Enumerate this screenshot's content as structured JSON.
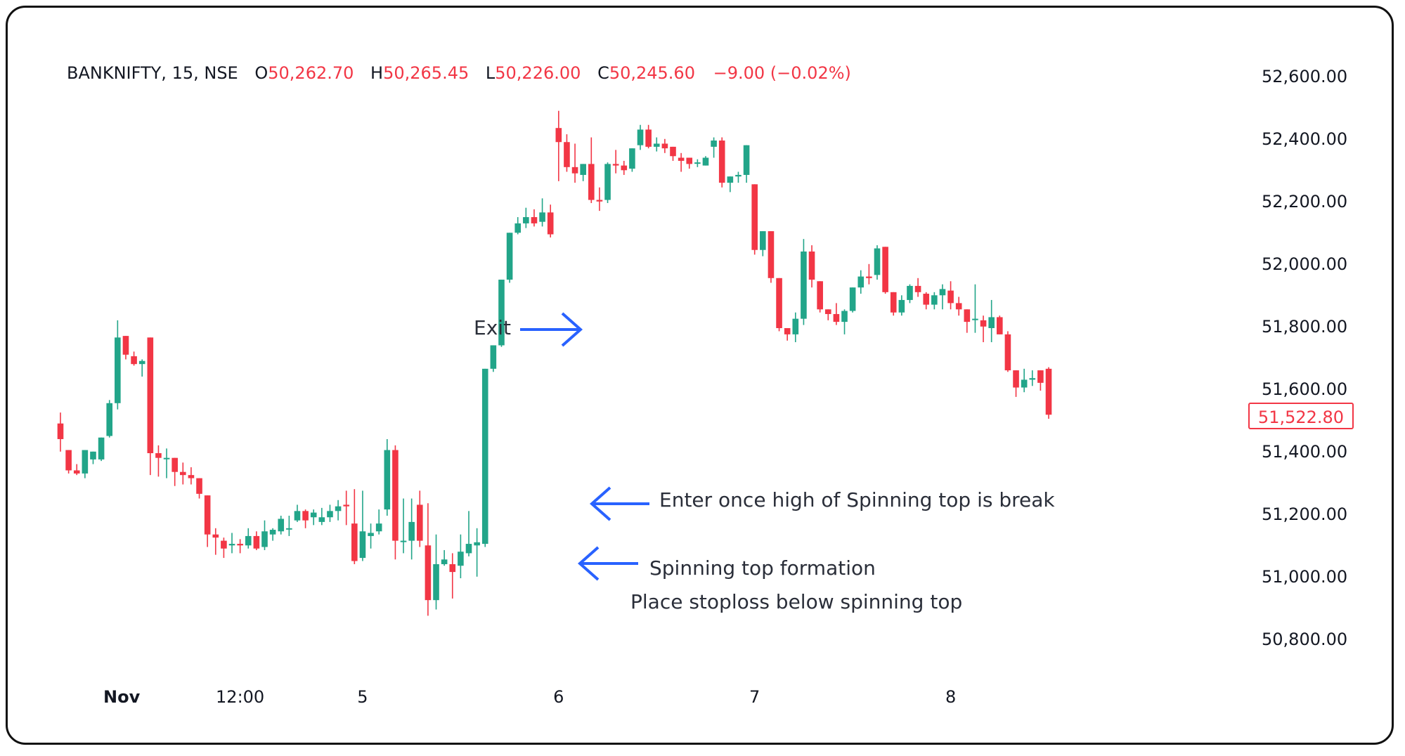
{
  "legend": {
    "symbol": "BANKNIFTY, 15, NSE",
    "open_key": "O",
    "open": "50,262.70",
    "high_key": "H",
    "high": "50,265.45",
    "low_key": "L",
    "low": "50,226.00",
    "close_key": "C",
    "close": "50,245.60",
    "change": "−9.00 (−0.02%)"
  },
  "colors": {
    "up": "#22a589",
    "down": "#f23645",
    "arrow": "#2962ff",
    "text": "#131722"
  },
  "last_price": "51,522.80",
  "annotations": {
    "exit": "Exit",
    "enter": "Enter once high of Spinning top is break",
    "formation": "Spinning top formation",
    "stoploss": "Place stoploss below spinning top"
  },
  "chart_data": {
    "type": "candlestick",
    "title": "BANKNIFTY, 15, NSE",
    "y_axis": {
      "ticks": [
        "52,600.00",
        "52,400.00",
        "52,200.00",
        "52,000.00",
        "51,800.00",
        "51,600.00",
        "51,400.00",
        "51,200.00",
        "51,000.00",
        "50,800.00"
      ],
      "tick_values": [
        52600,
        52400,
        52200,
        52000,
        51800,
        51600,
        51400,
        51200,
        51000,
        50800
      ],
      "range": [
        50720,
        52700
      ]
    },
    "x_axis": {
      "ticks": [
        "Nov",
        "12:00",
        "5",
        "6",
        "7",
        "8"
      ],
      "tick_index": [
        7.5,
        22,
        37,
        61,
        85,
        109
      ]
    },
    "grid": false,
    "last_price": 51522.8,
    "candles": [
      [
        51495,
        51530,
        51445,
        51405
      ],
      [
        51410,
        51410,
        51345,
        51335
      ],
      [
        51345,
        51365,
        51335,
        51330
      ],
      [
        51335,
        51410,
        51410,
        51320
      ],
      [
        51380,
        51405,
        51405,
        51365
      ],
      [
        51380,
        51450,
        51450,
        51375
      ],
      [
        51455,
        51570,
        51560,
        51450
      ],
      [
        51560,
        51825,
        51770,
        51540
      ],
      [
        51775,
        51775,
        51715,
        51700
      ],
      [
        51710,
        51725,
        51685,
        51680
      ],
      [
        51685,
        51700,
        51695,
        51645
      ],
      [
        51770,
        51770,
        51400,
        51330
      ],
      [
        51400,
        51425,
        51385,
        51325
      ],
      [
        51385,
        51415,
        51385,
        51320
      ],
      [
        51385,
        51385,
        51340,
        51295
      ],
      [
        51340,
        51370,
        51330,
        51300
      ],
      [
        51330,
        51355,
        51320,
        51300
      ],
      [
        51320,
        51320,
        51270,
        51255
      ],
      [
        51265,
        51265,
        51140,
        51100
      ],
      [
        51140,
        51160,
        51130,
        51075
      ],
      [
        51120,
        51130,
        51095,
        51065
      ],
      [
        51105,
        51145,
        51110,
        51080
      ],
      [
        51110,
        51125,
        51105,
        51080
      ],
      [
        51105,
        51160,
        51135,
        51095
      ],
      [
        51135,
        51150,
        51095,
        51090
      ],
      [
        51100,
        51185,
        51150,
        51090
      ],
      [
        51140,
        51160,
        51155,
        51120
      ],
      [
        51150,
        51200,
        51190,
        51140
      ],
      [
        51160,
        51200,
        51160,
        51135
      ],
      [
        51185,
        51235,
        51215,
        51180
      ],
      [
        51215,
        51220,
        51185,
        51160
      ],
      [
        51195,
        51220,
        51210,
        51170
      ],
      [
        51180,
        51225,
        51195,
        51170
      ],
      [
        51195,
        51235,
        51215,
        51180
      ],
      [
        51215,
        51250,
        51230,
        51185
      ],
      [
        51235,
        51280,
        51230,
        51170
      ],
      [
        51175,
        51285,
        51055,
        51045
      ],
      [
        51065,
        51280,
        51150,
        51055
      ],
      [
        51135,
        51175,
        51145,
        51095
      ],
      [
        51150,
        51220,
        51175,
        51140
      ],
      [
        51220,
        51445,
        51410,
        51200
      ],
      [
        51410,
        51425,
        51120,
        51060
      ],
      [
        51120,
        51255,
        51120,
        51080
      ],
      [
        51120,
        51255,
        51180,
        51060
      ],
      [
        51235,
        51280,
        51120,
        51100
      ],
      [
        51105,
        51240,
        50930,
        50880
      ],
      [
        50930,
        51140,
        51045,
        50900
      ],
      [
        51045,
        51090,
        51060,
        51040
      ],
      [
        51045,
        51080,
        51020,
        50935
      ],
      [
        51040,
        51140,
        51085,
        51000
      ],
      [
        51080,
        51215,
        51110,
        51070
      ],
      [
        51105,
        51160,
        51115,
        51005
      ],
      [
        51110,
        51150,
        51670,
        51100
      ],
      [
        51670,
        51730,
        51745,
        51660
      ],
      [
        51745,
        51800,
        51955,
        51740
      ],
      [
        51955,
        51955,
        52105,
        51945
      ],
      [
        52105,
        52155,
        52135,
        52100
      ],
      [
        52135,
        52185,
        52155,
        52120
      ],
      [
        52155,
        52180,
        52135,
        52125
      ],
      [
        52140,
        52215,
        52170,
        52125
      ],
      [
        52170,
        52195,
        52100,
        52090
      ],
      [
        52440,
        52495,
        52395,
        52270
      ],
      [
        52395,
        52420,
        52315,
        52300
      ],
      [
        52315,
        52390,
        52295,
        52265
      ],
      [
        52290,
        52325,
        52325,
        52270
      ],
      [
        52325,
        52410,
        52210,
        52200
      ],
      [
        52210,
        52250,
        52205,
        52175
      ],
      [
        52210,
        52330,
        52325,
        52200
      ],
      [
        52325,
        52370,
        52320,
        52295
      ],
      [
        52320,
        52335,
        52305,
        52290
      ],
      [
        52310,
        52355,
        52375,
        52300
      ],
      [
        52385,
        52450,
        52435,
        52370
      ],
      [
        52435,
        52450,
        52380,
        52375
      ],
      [
        52380,
        52410,
        52390,
        52365
      ],
      [
        52390,
        52405,
        52375,
        52360
      ],
      [
        52380,
        52380,
        52350,
        52335
      ],
      [
        52345,
        52360,
        52335,
        52300
      ],
      [
        52345,
        52345,
        52325,
        52310
      ],
      [
        52330,
        52340,
        52330,
        52315
      ],
      [
        52320,
        52350,
        52345,
        52320
      ],
      [
        52380,
        52410,
        52400,
        52345
      ],
      [
        52400,
        52410,
        52265,
        52250
      ],
      [
        52265,
        52280,
        52285,
        52235
      ],
      [
        52285,
        52300,
        52290,
        52265
      ],
      [
        52290,
        52385,
        52385,
        52265
      ],
      [
        52260,
        52250,
        52050,
        52035
      ],
      [
        52050,
        52055,
        52110,
        52030
      ],
      [
        52110,
        52110,
        51960,
        51945
      ],
      [
        51960,
        51960,
        51800,
        51790
      ],
      [
        51800,
        51800,
        51780,
        51760
      ],
      [
        51780,
        51850,
        51830,
        51755
      ],
      [
        51830,
        52085,
        52045,
        51810
      ],
      [
        52045,
        52065,
        51955,
        51930
      ],
      [
        51950,
        51950,
        51860,
        51850
      ],
      [
        51860,
        51860,
        51845,
        51825
      ],
      [
        51845,
        51880,
        51820,
        51810
      ],
      [
        51820,
        51860,
        51855,
        51780
      ],
      [
        51855,
        51930,
        51930,
        51850
      ],
      [
        51930,
        51985,
        51965,
        51910
      ],
      [
        51965,
        52005,
        51960,
        51940
      ],
      [
        51970,
        52065,
        52055,
        51955
      ],
      [
        52060,
        52060,
        51915,
        51910
      ],
      [
        51915,
        51915,
        51850,
        51840
      ],
      [
        51850,
        51905,
        51890,
        51840
      ],
      [
        51890,
        51940,
        51935,
        51880
      ],
      [
        51935,
        51960,
        51915,
        51900
      ],
      [
        51910,
        51915,
        51875,
        51860
      ],
      [
        51875,
        51915,
        51905,
        51860
      ],
      [
        51905,
        51940,
        51925,
        51860
      ],
      [
        51920,
        51950,
        51880,
        51860
      ],
      [
        51880,
        51900,
        51860,
        51840
      ],
      [
        51860,
        51860,
        51820,
        51785
      ],
      [
        51830,
        51940,
        51830,
        51785
      ],
      [
        51825,
        51840,
        51805,
        51755
      ],
      [
        51800,
        51890,
        51835,
        51755
      ],
      [
        51835,
        51840,
        51780,
        51780
      ],
      [
        51780,
        51790,
        51665,
        51660
      ],
      [
        51665,
        51650,
        51610,
        51580
      ],
      [
        51610,
        51670,
        51635,
        51595
      ],
      [
        51635,
        51665,
        51640,
        51615
      ],
      [
        51665,
        51650,
        51625,
        51600
      ],
      [
        51670,
        51675,
        51523,
        51510
      ]
    ]
  }
}
